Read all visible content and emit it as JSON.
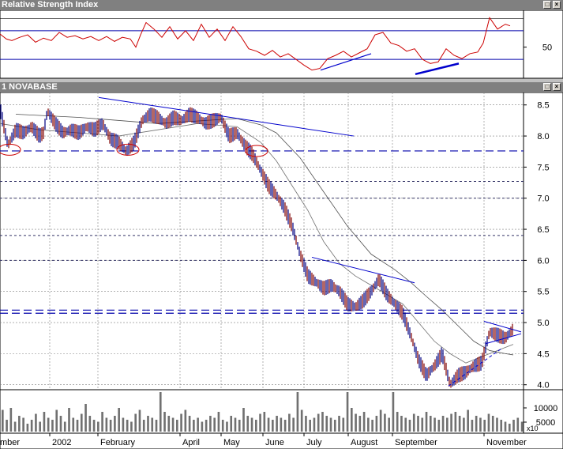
{
  "window": {
    "rsi_title": "Relative Strength Index",
    "price_title": "1 NOVABASE",
    "btn_restore": "□",
    "btn_close": "×"
  },
  "chart_data": [
    {
      "type": "line",
      "title": "Relative Strength Index",
      "ylim": [
        12,
        95
      ],
      "yticks": [
        50
      ],
      "reference_lines": [
        70,
        35
      ],
      "series": [
        {
          "x": [
            0,
            8,
            15,
            25,
            35,
            45,
            55,
            65,
            75,
            85,
            95,
            105,
            115,
            125,
            135,
            145,
            155,
            165,
            172,
            178,
            185,
            195,
            205,
            215,
            225,
            235,
            245,
            255,
            265,
            275,
            285,
            295,
            305,
            315,
            325,
            335,
            345,
            355,
            365,
            375,
            385,
            395,
            405,
            415,
            425,
            435,
            445,
            455,
            465,
            475,
            485,
            495,
            505,
            515,
            525,
            535,
            545,
            555,
            565,
            575,
            585,
            595,
            605,
            612,
            620,
            630,
            640,
            646
          ],
          "values": [
            66,
            60,
            58,
            62,
            65,
            56,
            61,
            58,
            68,
            62,
            64,
            60,
            63,
            58,
            63,
            57,
            62,
            60,
            50,
            65,
            80,
            72,
            62,
            75,
            60,
            70,
            58,
            78,
            62,
            72,
            58,
            75,
            63,
            48,
            45,
            40,
            46,
            38,
            42,
            35,
            28,
            22,
            24,
            36,
            40,
            45,
            38,
            43,
            48,
            65,
            68,
            55,
            52,
            45,
            48,
            35,
            30,
            32,
            48,
            40,
            36,
            42,
            44,
            55,
            86,
            72,
            78,
            76
          ]
        }
      ],
      "trendlines": [
        {
          "x": [
            406,
            470
          ],
          "values": [
            22,
            42
          ]
        },
        {
          "x": [
            526,
            581
          ],
          "values": [
            17,
            30
          ]
        }
      ]
    },
    {
      "type": "line",
      "title": "1 NOVABASE",
      "ylim": [
        3.92,
        8.7
      ],
      "yticks": [
        "8.5",
        "8.0",
        "7.5",
        "7.0",
        "6.5",
        "6.0",
        "5.5",
        "5.0",
        "4.5",
        "4.0"
      ],
      "months": [
        "mber",
        "2002",
        "February",
        "April",
        "May",
        "June",
        "July",
        "August",
        "September",
        "November"
      ],
      "series": [
        {
          "x": [
            0,
            10,
            20,
            30,
            40,
            50,
            55,
            60,
            70,
            80,
            90,
            100,
            110,
            120,
            130,
            140,
            150,
            160,
            170,
            180,
            190,
            200,
            210,
            220,
            230,
            240,
            250,
            260,
            270,
            280,
            290,
            300,
            310,
            320,
            330,
            340,
            350,
            360,
            370,
            380,
            390,
            400,
            410,
            420,
            430,
            440,
            450,
            460,
            470,
            480,
            490,
            500,
            510,
            520,
            530,
            540,
            550,
            560,
            570,
            580,
            590,
            600,
            610,
            615,
            620,
            630,
            640,
            650
          ],
          "values": [
            8.45,
            7.85,
            8.1,
            8.05,
            8.15,
            8.0,
            8.05,
            8.4,
            8.2,
            8.05,
            8.1,
            8.05,
            8.15,
            8.1,
            8.2,
            7.95,
            7.9,
            7.75,
            7.9,
            8.25,
            8.35,
            8.3,
            8.2,
            8.3,
            8.25,
            8.35,
            8.3,
            8.2,
            8.25,
            8.3,
            8.0,
            8.05,
            7.85,
            7.7,
            7.45,
            7.2,
            7.05,
            6.85,
            6.55,
            6.1,
            5.75,
            5.65,
            5.55,
            5.6,
            5.5,
            5.3,
            5.25,
            5.35,
            5.5,
            5.7,
            5.45,
            5.3,
            5.15,
            4.8,
            4.4,
            4.15,
            4.3,
            4.5,
            4.0,
            4.15,
            4.2,
            4.3,
            4.35,
            4.6,
            4.85,
            4.8,
            4.75,
            4.9
          ]
        },
        {
          "name": "",
          "x": [
            0,
            50,
            100,
            150,
            200,
            250,
            300,
            330,
            350,
            370,
            390,
            410,
            430,
            450,
            470,
            490,
            510,
            530,
            550,
            570,
            590,
            610,
            630,
            650
          ],
          "values": [
            8.2,
            8.1,
            8.05,
            8.0,
            8.1,
            8.2,
            8.15,
            7.9,
            7.6,
            7.2,
            6.8,
            6.3,
            5.95,
            5.75,
            5.6,
            5.45,
            5.3,
            5.0,
            4.7,
            4.5,
            4.35,
            4.45,
            4.55,
            4.65
          ]
        },
        {
          "name": "",
          "x": [
            20,
            100,
            200,
            260,
            300,
            330,
            350,
            380,
            410,
            440,
            470,
            500,
            520,
            540,
            560,
            580,
            600,
            620,
            640,
            650
          ],
          "values": [
            8.35,
            8.3,
            8.2,
            8.25,
            8.28,
            8.18,
            8.05,
            7.65,
            7.1,
            6.55,
            6.1,
            5.85,
            5.65,
            5.42,
            5.2,
            4.95,
            4.7,
            4.55,
            4.5,
            4.48
          ]
        }
      ],
      "horizontal_lines": [
        7.76,
        5.2,
        5.15,
        6.4,
        6.0,
        7.27,
        7.0
      ],
      "trendlines": [
        {
          "x": [
            125,
            448
          ],
          "values": [
            8.62,
            8.0
          ]
        },
        {
          "x": [
            395,
            525
          ],
          "values": [
            6.05,
            5.64
          ]
        },
        {
          "x": [
            613,
            660
          ],
          "values": [
            5.02,
            4.85
          ]
        },
        {
          "x": [
            615,
            660
          ],
          "values": [
            4.66,
            4.82
          ]
        },
        {
          "x": [
            568,
            635
          ],
          "values": [
            3.98,
            4.58
          ]
        }
      ],
      "circles": [
        {
          "x": 12,
          "value": 7.78
        },
        {
          "x": 162,
          "value": 7.78
        },
        {
          "x": 325,
          "value": 7.76
        }
      ]
    },
    {
      "type": "bar",
      "title": "",
      "yticks": [
        "10000",
        "5000"
      ],
      "units_label": "x10",
      "values": [
        0.55,
        0.3,
        0.6,
        0.25,
        0.4,
        0.35,
        0.2,
        0.3,
        0.45,
        0.25,
        0.5,
        0.35,
        0.3,
        0.55,
        0.4,
        0.25,
        0.6,
        0.35,
        0.3,
        0.45,
        0.7,
        0.4,
        0.3,
        0.25,
        0.5,
        0.35,
        0.3,
        0.4,
        0.6,
        0.35,
        0.3,
        0.25,
        0.45,
        0.55,
        0.3,
        0.4,
        0.35,
        0.3,
        1.0,
        0.5,
        0.4,
        0.35,
        0.3,
        0.45,
        0.55,
        0.4,
        0.3,
        0.35,
        0.25,
        0.3,
        0.4,
        0.35,
        0.5,
        0.3,
        0.25,
        0.4,
        0.35,
        0.3,
        0.6,
        0.4,
        0.35,
        0.3,
        0.45,
        0.5,
        0.35,
        0.3,
        0.4,
        0.35,
        0.3,
        0.45,
        0.35,
        1.0,
        0.55,
        0.4,
        0.3,
        0.35,
        0.45,
        0.5,
        0.4,
        0.35,
        0.3,
        0.4,
        0.35,
        1.0,
        0.6,
        0.45,
        0.4,
        0.5,
        0.35,
        0.3,
        0.4,
        0.55,
        0.45,
        0.35,
        1.0,
        0.5,
        0.4,
        0.35,
        0.3,
        0.45,
        0.4,
        0.35,
        0.5,
        0.4,
        0.35,
        0.3,
        0.4,
        0.35,
        0.45,
        0.5,
        0.4,
        0.35,
        0.55,
        0.3,
        0.4,
        0.35,
        0.3,
        0.45,
        0.4,
        0.35,
        0.3,
        0.25,
        0.2,
        0.3,
        0.35,
        0.25
      ]
    }
  ]
}
